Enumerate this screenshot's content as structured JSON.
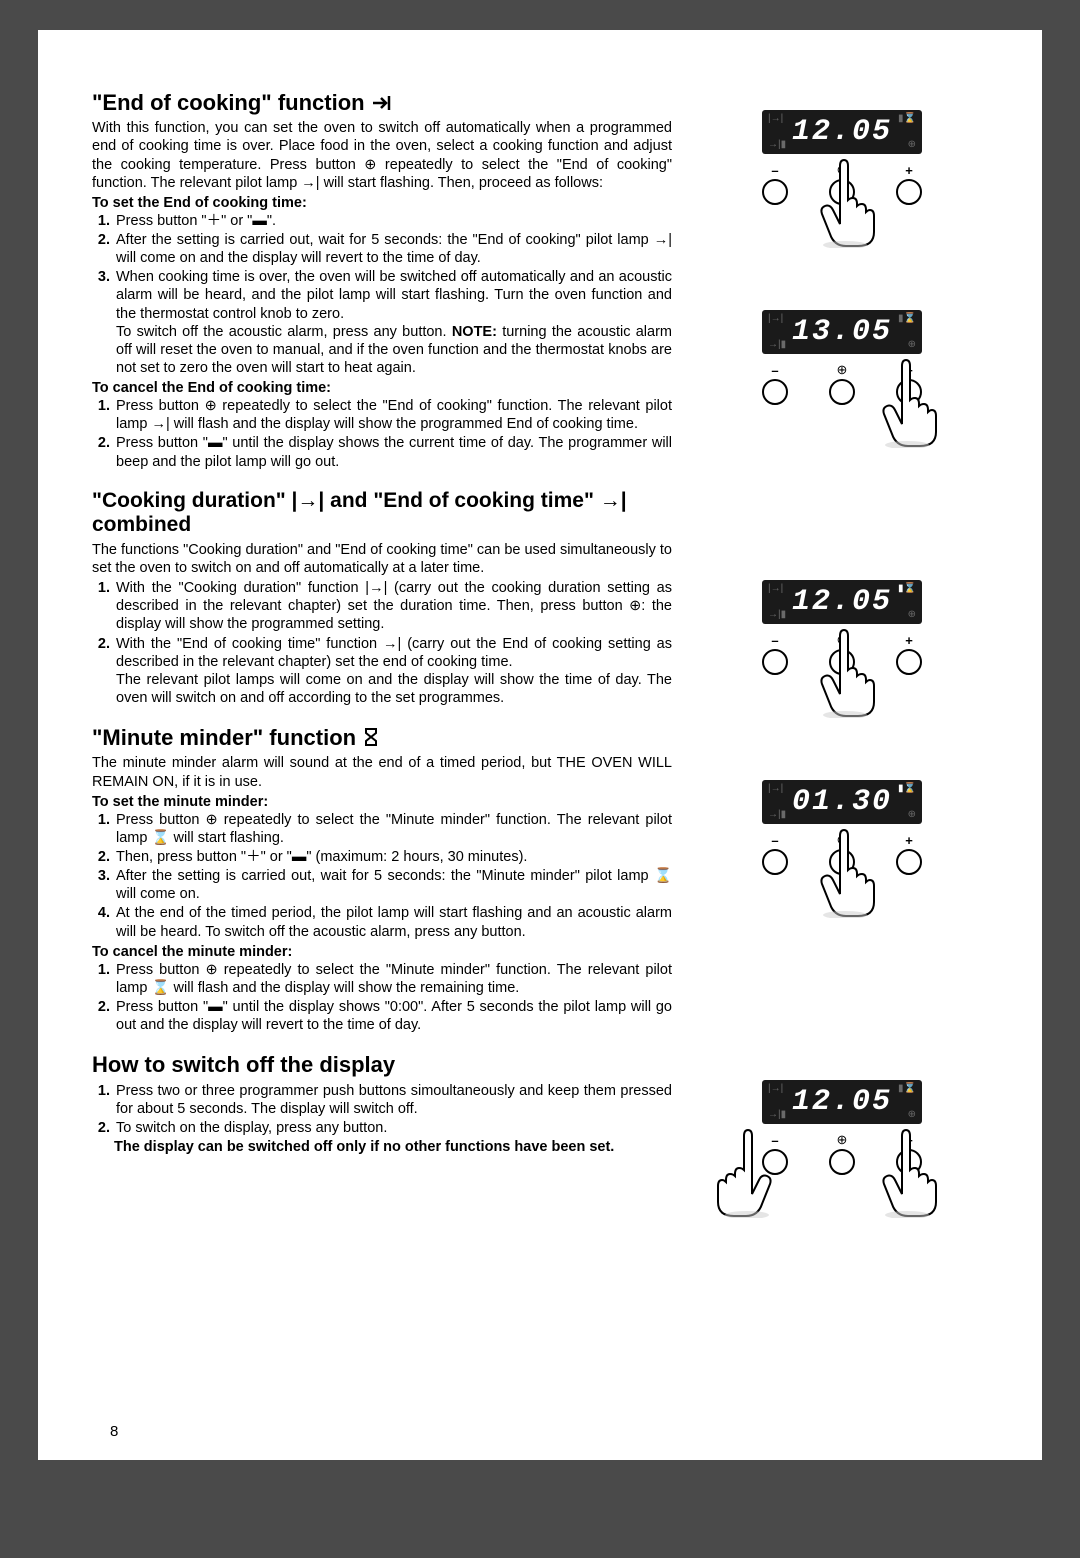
{
  "page_number": "8",
  "end_cooking": {
    "title_a": "\"End of cooking\" function ",
    "intro": "With this function, you can set the oven to switch off automatically when a programmed end of cooking time is over. Place food in the oven, select a cooking function and adjust the cooking temperature. Press button ⊕ repeatedly to select the \"End of cooking\" function. The relevant pilot lamp →| will start flashing. Then, proceed as follows:",
    "set_head": "To set the End of cooking time:",
    "set_items": [
      "Press button \"＋\" or \"▬\".",
      "After the setting is carried out, wait for 5 seconds: the \"End of cooking\" pilot lamp →| will come on and the display will revert to the time of day.",
      "When cooking time is over, the oven will be switched off automatically and an acoustic alarm will be heard, and the pilot lamp will start flashing. Turn the oven function and the thermostat control knob to zero.\nTo switch off the acoustic alarm, press any button. NOTE: turning the acoustic alarm off will reset the oven to manual, and if the oven function and the thermostat knobs are not set to zero the oven will start to heat again."
    ],
    "cancel_head": "To cancel the End of cooking time:",
    "cancel_items": [
      "Press button ⊕ repeatedly to select the \"End of cooking\" function. The relevant pilot lamp →| will flash and the display will show the programmed End of cooking time.",
      "Press button \"▬\" until the display shows the current time of day. The programmer will beep and the pilot lamp will go out."
    ]
  },
  "combined": {
    "title": "\"Cooking duration\" |→| and \"End of cooking time\" →| combined",
    "intro": "The functions \"Cooking duration\" and \"End of cooking time\" can be used simultaneously to set the oven to switch on and off automatically at a later time.",
    "items": [
      "With the \"Cooking duration\" function |→| (carry out the cooking duration setting as described in the relevant chapter) set the duration time. Then, press button ⊕: the display will show the programmed setting.",
      "With the \"End of cooking time\" function →| (carry out the End of cooking setting as described in the relevant chapter) set the end of cooking time.\nThe relevant pilot lamps will come on and the display will show the time of day. The oven will switch on and off according to the set programmes."
    ]
  },
  "minute": {
    "title": "\"Minute minder\" function ",
    "intro": "The minute minder alarm will sound at the end of a timed period, but THE OVEN WILL REMAIN ON, if it is in use.",
    "set_head": "To set the minute minder:",
    "set_items": [
      "Press button ⊕ repeatedly to select the \"Minute minder\" function. The relevant pilot lamp ⌛ will start flashing.",
      "Then, press button \"＋\" or \"▬\" (maximum: 2 hours, 30 minutes).",
      "After the setting is carried out, wait for 5 seconds: the \"Minute minder\" pilot lamp ⌛ will come on.",
      "At the end of the timed period, the pilot lamp will start flashing and an acoustic alarm will be heard. To switch off the acoustic alarm, press any button."
    ],
    "cancel_head": "To cancel the minute minder:",
    "cancel_items": [
      "Press button ⊕ repeatedly to select the \"Minute minder\" function. The relevant pilot lamp ⌛ will flash and the display will show the remaining time.",
      "Press button \"▬\" until the display shows \"0:00\". After 5 seconds the pilot lamp will go out and the display will revert to the time of day."
    ]
  },
  "switch_off": {
    "title": "How to switch off the display",
    "items": [
      "Press two or three programmer push buttons simoultaneously and keep them pressed for about 5 seconds. The display will switch off.",
      "To switch on the display, press any button."
    ],
    "note": "The display can be switched off only if no other functions have been set."
  },
  "displays": [
    {
      "time": "12.05",
      "tr_on": false,
      "press": "center"
    },
    {
      "time": "13.05",
      "tr_on": false,
      "press": "right"
    },
    {
      "time": "12.05",
      "tr_on": true,
      "press": "center"
    },
    {
      "time": "01.30",
      "tr_on": true,
      "press": "center"
    },
    {
      "time": "12.05",
      "tr_on": false,
      "press": "both"
    }
  ]
}
